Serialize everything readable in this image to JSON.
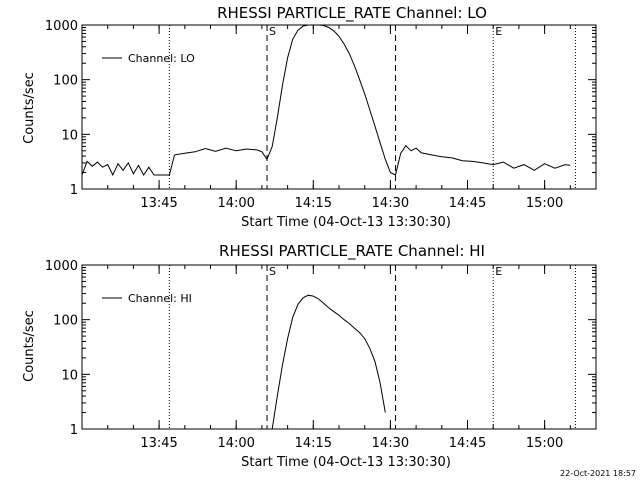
{
  "footer": {
    "timestamp": "22-Oct-2021 18:57"
  },
  "chart_data": [
    {
      "type": "line",
      "title": "RHESSI PARTICLE_RATE Channel: LO",
      "xlabel": "Start Time (04-Oct-13 13:30:30)",
      "ylabel": "Counts/sec",
      "y_scale": "log",
      "ylim": [
        1,
        1000
      ],
      "xlim": [
        "13:30",
        "15:10"
      ],
      "yticks": [
        {
          "value": 1,
          "label": "1"
        },
        {
          "value": 10,
          "label": "10"
        },
        {
          "value": 100,
          "label": "100"
        },
        {
          "value": 1000,
          "label": "1000"
        }
      ],
      "xticks": [
        {
          "value": "13:45",
          "label": "13:45"
        },
        {
          "value": "14:00",
          "label": "14:00"
        },
        {
          "value": "14:15",
          "label": "14:15"
        },
        {
          "value": "14:30",
          "label": "14:30"
        },
        {
          "value": "14:45",
          "label": "14:45"
        },
        {
          "value": "15:00",
          "label": "15:00"
        }
      ],
      "legend": {
        "placement": "top-left",
        "label": "Channel: LO"
      },
      "vlines": [
        {
          "x": "13:47",
          "style": "dotted"
        },
        {
          "x": "14:06",
          "style": "dashed",
          "label": "S"
        },
        {
          "x": "14:31",
          "style": "dashed"
        },
        {
          "x": "14:50",
          "style": "dotted",
          "label": "E"
        },
        {
          "x": "15:06",
          "style": "dotted"
        }
      ],
      "series": [
        {
          "name": "Channel: LO",
          "x": [
            "13:30",
            "13:31",
            "13:32",
            "13:33",
            "13:34",
            "13:35",
            "13:36",
            "13:37",
            "13:38",
            "13:39",
            "13:40",
            "13:41",
            "13:42",
            "13:43",
            "13:44",
            "13:45",
            "13:46",
            "13:47",
            "13:48",
            "13:50",
            "13:52",
            "13:54",
            "13:56",
            "13:58",
            "14:00",
            "14:02",
            "14:04",
            "14:05",
            "14:06",
            "14:07",
            "14:08",
            "14:09",
            "14:10",
            "14:11",
            "14:12",
            "14:13",
            "14:14",
            "14:15",
            "14:16",
            "14:17",
            "14:18",
            "14:19",
            "14:20",
            "14:21",
            "14:22",
            "14:23",
            "14:24",
            "14:25",
            "14:26",
            "14:27",
            "14:28",
            "14:29",
            "14:30",
            "14:31",
            "14:32",
            "14:33",
            "14:34",
            "14:35",
            "14:36",
            "14:38",
            "14:40",
            "14:42",
            "14:44",
            "14:46",
            "14:48",
            "14:50",
            "14:52",
            "14:54",
            "14:56",
            "14:58",
            "15:00",
            "15:02",
            "15:04",
            "15:05"
          ],
          "y": [
            1.8,
            3.2,
            2.6,
            3.1,
            2.5,
            2.8,
            1.8,
            2.9,
            2.2,
            3.0,
            1.9,
            2.7,
            1.8,
            2.5,
            1.8,
            1.8,
            1.8,
            1.8,
            4.2,
            4.5,
            4.8,
            5.5,
            4.9,
            5.6,
            5.0,
            5.4,
            5.2,
            4.8,
            3.5,
            6,
            20,
            80,
            250,
            550,
            800,
            950,
            1000,
            1000,
            1000,
            980,
            900,
            780,
            620,
            450,
            300,
            180,
            100,
            55,
            28,
            14,
            7,
            3.5,
            2.0,
            1.8,
            4.5,
            6.2,
            5.0,
            5.6,
            4.6,
            4.2,
            3.9,
            3.7,
            3.3,
            3.2,
            3.0,
            2.8,
            3.1,
            2.4,
            2.8,
            2.2,
            2.9,
            2.4,
            2.8,
            2.7
          ]
        }
      ]
    },
    {
      "type": "line",
      "title": "RHESSI PARTICLE_RATE Channel: HI",
      "xlabel": "Start Time (04-Oct-13 13:30:30)",
      "ylabel": "Counts/sec",
      "y_scale": "log",
      "ylim": [
        1,
        1000
      ],
      "xlim": [
        "13:30",
        "15:10"
      ],
      "yticks": [
        {
          "value": 1,
          "label": "1"
        },
        {
          "value": 10,
          "label": "10"
        },
        {
          "value": 100,
          "label": "100"
        },
        {
          "value": 1000,
          "label": "1000"
        }
      ],
      "xticks": [
        {
          "value": "13:45",
          "label": "13:45"
        },
        {
          "value": "14:00",
          "label": "14:00"
        },
        {
          "value": "14:15",
          "label": "14:15"
        },
        {
          "value": "14:30",
          "label": "14:30"
        },
        {
          "value": "14:45",
          "label": "14:45"
        },
        {
          "value": "15:00",
          "label": "15:00"
        }
      ],
      "legend": {
        "placement": "top-left",
        "label": "Channel: HI"
      },
      "vlines": [
        {
          "x": "13:47",
          "style": "dotted"
        },
        {
          "x": "14:06",
          "style": "dashed",
          "label": "S"
        },
        {
          "x": "14:31",
          "style": "dashed"
        },
        {
          "x": "14:50",
          "style": "dotted",
          "label": "E"
        },
        {
          "x": "15:06",
          "style": "dotted"
        }
      ],
      "series": [
        {
          "name": "Channel: HI",
          "x": [
            "14:07",
            "14:08",
            "14:09",
            "14:10",
            "14:11",
            "14:12",
            "14:13",
            "14:14",
            "14:15",
            "14:16",
            "14:17",
            "14:18",
            "14:19",
            "14:20",
            "14:21",
            "14:22",
            "14:23",
            "14:24",
            "14:25",
            "14:26",
            "14:27",
            "14:28",
            "14:29"
          ],
          "y": [
            1.0,
            4,
            15,
            45,
            110,
            190,
            250,
            280,
            270,
            240,
            200,
            165,
            140,
            120,
            100,
            85,
            70,
            58,
            45,
            30,
            17,
            7,
            2
          ]
        }
      ]
    }
  ]
}
